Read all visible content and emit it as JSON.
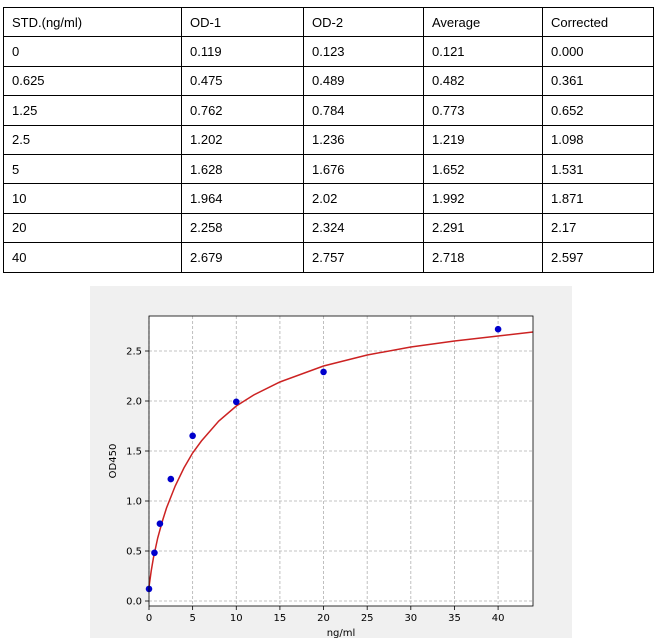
{
  "table": {
    "headers": [
      "STD.(ng/ml)",
      "OD-1",
      "OD-2",
      "Average",
      "Corrected"
    ],
    "rows": [
      [
        "0",
        "0.119",
        "0.123",
        "0.121",
        "0.000"
      ],
      [
        "0.625",
        "0.475",
        "0.489",
        "0.482",
        "0.361"
      ],
      [
        "1.25",
        "0.762",
        "0.784",
        "0.773",
        "0.652"
      ],
      [
        "2.5",
        "1.202",
        "1.236",
        "1.219",
        "1.098"
      ],
      [
        "5",
        "1.628",
        "1.676",
        "1.652",
        "1.531"
      ],
      [
        "10",
        "1.964",
        "2.02",
        "1.992",
        "1.871"
      ],
      [
        "20",
        "2.258",
        "2.324",
        "2.291",
        "2.17"
      ],
      [
        "40",
        "2.679",
        "2.757",
        "2.718",
        "2.597"
      ]
    ]
  },
  "chart_data": {
    "type": "scatter",
    "title": "",
    "xlabel": "ng/ml",
    "ylabel": "OD450",
    "xlim": [
      0,
      44
    ],
    "ylim": [
      -0.05,
      2.85
    ],
    "xticks": [
      "0",
      "5",
      "10",
      "15",
      "20",
      "25",
      "30",
      "35",
      "40"
    ],
    "yticks": [
      "0.0",
      "0.5",
      "1.0",
      "1.5",
      "2.0",
      "2.5"
    ],
    "grid": true,
    "points": {
      "x": [
        0,
        0.625,
        1.25,
        2.5,
        5,
        10,
        20,
        40
      ],
      "y": [
        0.121,
        0.482,
        0.773,
        1.219,
        1.652,
        1.992,
        2.291,
        2.718
      ],
      "color": "#0000cc"
    },
    "fit_curve": {
      "color": "#cc2222",
      "x": [
        0,
        0.25,
        0.5,
        1,
        1.5,
        2,
        3,
        4,
        5,
        6,
        8,
        10,
        12,
        15,
        20,
        25,
        30,
        35,
        40,
        44
      ],
      "y": [
        0.14,
        0.3,
        0.43,
        0.63,
        0.79,
        0.93,
        1.15,
        1.33,
        1.48,
        1.6,
        1.8,
        1.95,
        2.06,
        2.19,
        2.35,
        2.46,
        2.54,
        2.6,
        2.65,
        2.69
      ]
    }
  }
}
